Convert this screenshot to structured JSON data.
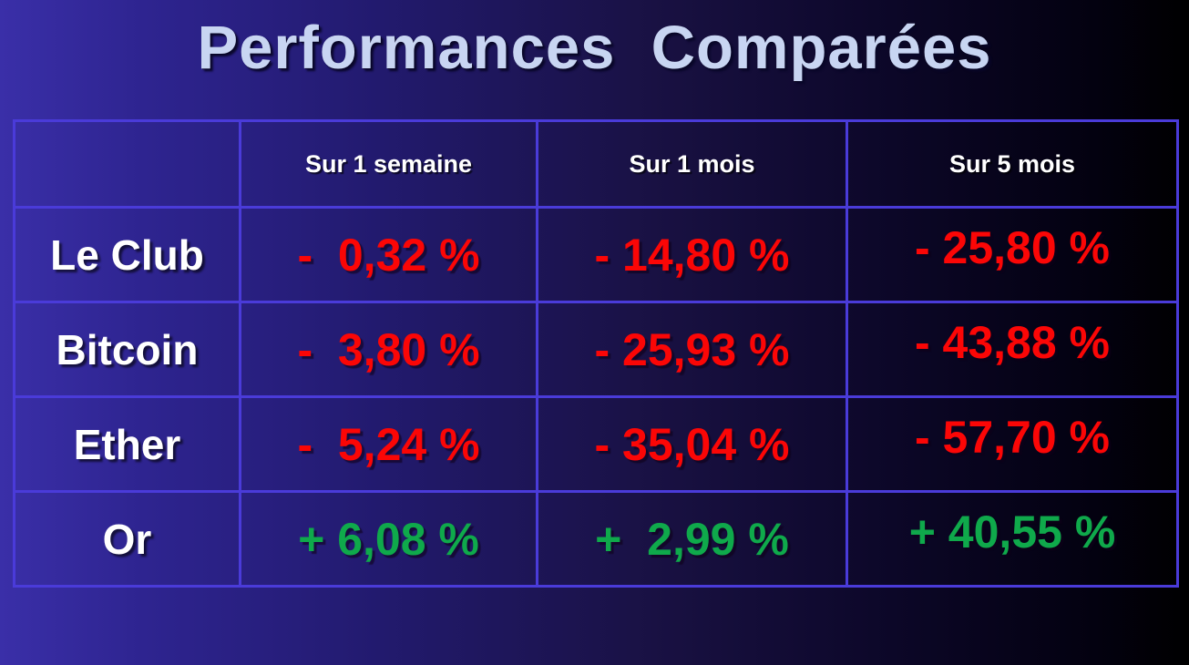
{
  "title": "Performances  Comparées",
  "table": {
    "headers": [
      "",
      "Sur 1 semaine",
      "Sur 1 mois",
      "Sur 5 mois"
    ],
    "rows": [
      {
        "label": "Le Club",
        "values": [
          "-  0,32 %",
          "- 14,80 %",
          "- 25,80 %"
        ]
      },
      {
        "label": "Bitcoin",
        "values": [
          "-  3,80 %",
          "- 25,93 %",
          "- 43,88 %"
        ]
      },
      {
        "label": "Ether",
        "values": [
          "-  5,24 %",
          "- 35,04 %",
          "- 57,70 %"
        ]
      },
      {
        "label": "Or",
        "values": [
          "+ 6,08 %",
          "+  2,99 %",
          "+ 40,55 %"
        ]
      }
    ]
  },
  "chart_data": {
    "type": "table",
    "title": "Performances Comparées",
    "columns": [
      "Sur 1 semaine",
      "Sur 1 mois",
      "Sur 5 mois"
    ],
    "row_labels": [
      "Le Club",
      "Bitcoin",
      "Ether",
      "Or"
    ],
    "values_percent": [
      [
        -0.32,
        -14.8,
        -25.8
      ],
      [
        -3.8,
        -25.93,
        -43.88
      ],
      [
        -5.24,
        -35.04,
        -57.7
      ],
      [
        6.08,
        2.99,
        40.55
      ]
    ],
    "value_color_rule": "negative values red, positive values green"
  },
  "colors": {
    "negative_value": "#fb0606",
    "positive_value": "#0fa94b",
    "title_text": "#c8d5f2",
    "header_text": "#ffffff",
    "row_label_text": "#ffffff",
    "table_border": "#4a3bd9",
    "background_left": "#3a2fa8",
    "background_right": "#000000"
  }
}
